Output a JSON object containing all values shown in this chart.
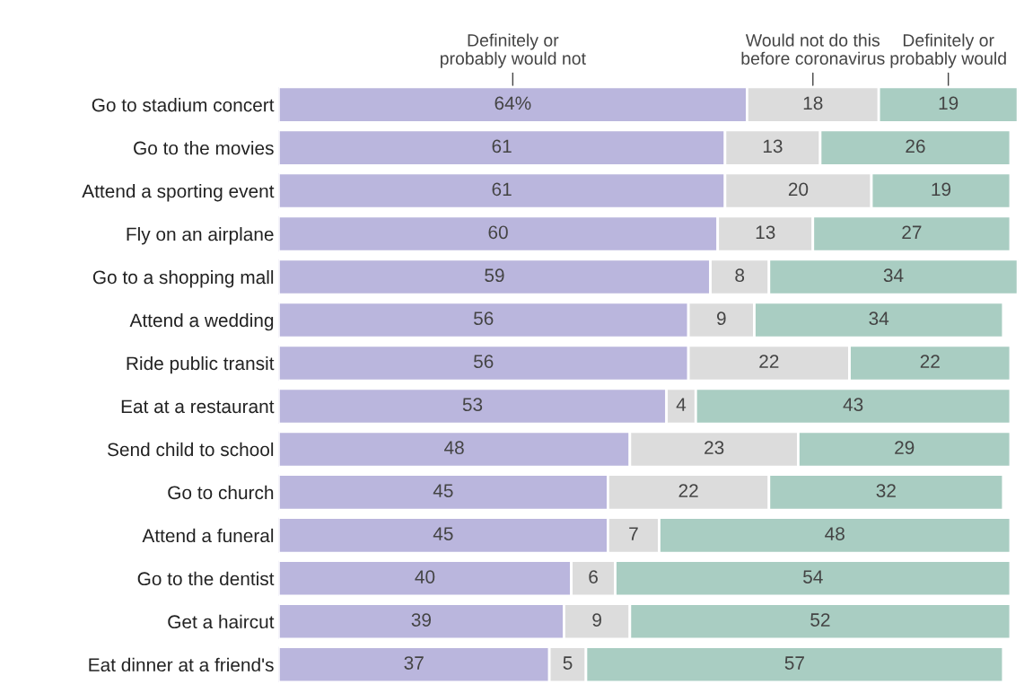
{
  "chart_data": {
    "type": "bar",
    "orientation": "horizontal",
    "stacked": true,
    "tick_labels": "y",
    "xlim": [
      0,
      101
    ],
    "categories": [
      "Go to stadium concert",
      "Go to the movies",
      "Attend a sporting event",
      "Fly on an airplane",
      "Go to a shopping mall",
      "Attend a wedding",
      "Ride public transit",
      "Eat at a restaurant",
      "Send child to school",
      "Go to church",
      "Attend a funeral",
      "Go to the dentist",
      "Get a haircut",
      "Eat dinner at a friend's"
    ],
    "series": [
      {
        "name": "Definitely or\nprobably would not",
        "color": "#bab6dd",
        "values": [
          64,
          61,
          61,
          60,
          59,
          56,
          56,
          53,
          48,
          45,
          45,
          40,
          39,
          37
        ],
        "value_labels": [
          "64%",
          "61",
          "61",
          "60",
          "59",
          "56",
          "56",
          "53",
          "48",
          "45",
          "45",
          "40",
          "39",
          "37"
        ]
      },
      {
        "name": "Would not do this\nbefore coronavirus",
        "color": "#dcdcdc",
        "values": [
          18,
          13,
          20,
          13,
          8,
          9,
          22,
          4,
          23,
          22,
          7,
          6,
          9,
          5
        ],
        "value_labels": [
          "18",
          "13",
          "20",
          "13",
          "8",
          "9",
          "22",
          "4",
          "23",
          "22",
          "7",
          "6",
          "9",
          "5"
        ]
      },
      {
        "name": "Definitely or\nprobably would",
        "color": "#a9cdc2",
        "values": [
          19,
          26,
          19,
          27,
          34,
          34,
          22,
          43,
          29,
          32,
          48,
          54,
          52,
          57
        ],
        "value_labels": [
          "19",
          "26",
          "19",
          "27",
          "34",
          "34",
          "22",
          "43",
          "29",
          "32",
          "48",
          "54",
          "52",
          "57"
        ]
      }
    ]
  }
}
